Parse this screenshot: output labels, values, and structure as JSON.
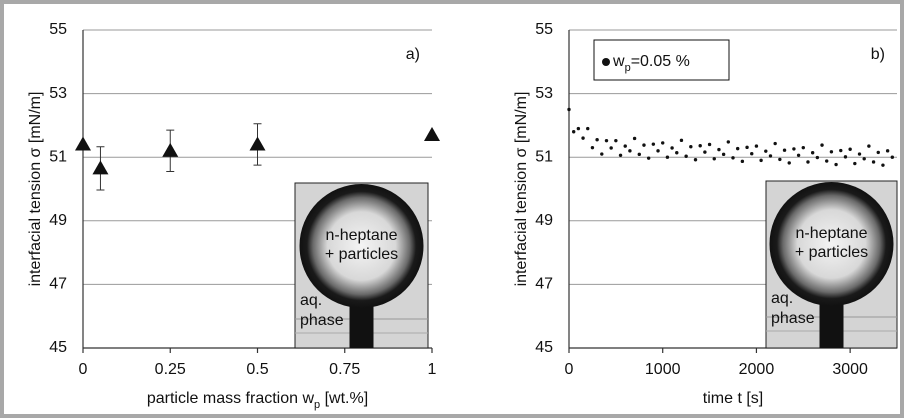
{
  "chart_data": [
    {
      "type": "scatter",
      "marker": "triangle",
      "color": "#111111",
      "y_label": "interfacial tension σ [mN/m]",
      "x_label": [
        "particle mass fraction w",
        "p",
        " [wt.%]"
      ],
      "panel_label": "a)",
      "x": [
        0,
        0.05,
        0.25,
        0.5,
        1
      ],
      "values": [
        51.4,
        50.65,
        51.2,
        51.4,
        51.7
      ],
      "errors": [
        null,
        0.68,
        0.65,
        0.65,
        null
      ],
      "xlim": [
        0,
        1
      ],
      "xticks": [
        0,
        0.25,
        0.5,
        0.75,
        1
      ],
      "ylim": [
        45,
        55
      ],
      "yticks": [
        45,
        47,
        49,
        51,
        53,
        55
      ],
      "grid": true,
      "inset_text": [
        "n-heptane",
        "+ particles"
      ],
      "inset_phase": [
        "aq.",
        "phase"
      ]
    },
    {
      "type": "scatter",
      "marker": "circle",
      "color": "#111111",
      "y_label": "interfacial tension σ [mN/m]",
      "x_label": [
        "time t [s]"
      ],
      "panel_label": "b)",
      "legend": "top-left",
      "series": [
        {
          "name": [
            "w",
            "p",
            "=0.05 %"
          ],
          "color": "#111111",
          "x": [
            0,
            50,
            100,
            150,
            200,
            250,
            300,
            350,
            400,
            450,
            500,
            550,
            600,
            650,
            700,
            750,
            800,
            850,
            900,
            950,
            1000,
            1050,
            1100,
            1150,
            1200,
            1250,
            1300,
            1350,
            1400,
            1450,
            1500,
            1550,
            1600,
            1650,
            1700,
            1750,
            1800,
            1850,
            1900,
            1950,
            2000,
            2050,
            2100,
            2150,
            2200,
            2250,
            2300,
            2350,
            2400,
            2450,
            2500,
            2550,
            2600,
            2650,
            2700,
            2750,
            2800,
            2850,
            2900,
            2950,
            3000,
            3050,
            3100,
            3150,
            3200,
            3250,
            3300,
            3350,
            3400,
            3450
          ],
          "values": [
            52.5,
            51.8,
            51.9,
            51.6,
            51.9,
            51.3,
            51.55,
            51.1,
            51.52,
            51.29,
            51.52,
            51.06,
            51.35,
            51.2,
            51.59,
            51.09,
            51.38,
            50.97,
            51.41,
            51.2,
            51.45,
            51.0,
            51.29,
            51.14,
            51.53,
            51.03,
            51.33,
            50.92,
            51.36,
            51.16,
            51.4,
            50.95,
            51.24,
            51.09,
            51.48,
            50.98,
            51.27,
            50.87,
            51.31,
            51.11,
            51.35,
            50.9,
            51.19,
            51.04,
            51.43,
            50.93,
            51.22,
            50.82,
            51.26,
            51.06,
            51.3,
            50.85,
            51.14,
            50.99,
            51.38,
            50.88,
            51.17,
            50.77,
            51.21,
            51.01,
            51.25,
            50.8,
            51.1,
            50.95,
            51.35,
            50.85,
            51.15,
            50.75,
            51.2,
            51.0
          ]
        }
      ],
      "xlim": [
        0,
        3500
      ],
      "xticks": [
        0,
        1000,
        2000,
        3000
      ],
      "ylim": [
        45,
        55
      ],
      "yticks": [
        45,
        47,
        49,
        51,
        53,
        55
      ],
      "grid": true,
      "inset_text": [
        "n-heptane",
        "+ particles"
      ],
      "inset_phase": [
        "aq.",
        "phase"
      ]
    }
  ]
}
